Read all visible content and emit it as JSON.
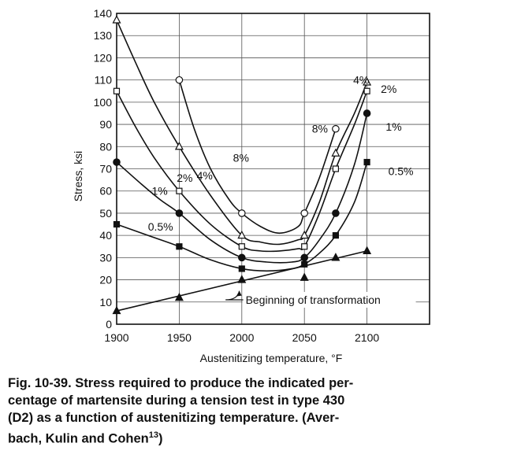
{
  "chart_data": {
    "type": "line",
    "title": "",
    "xlabel": "Austenitizing temperature, °F",
    "ylabel": "Stress, ksi",
    "xlim": [
      1900,
      2150
    ],
    "ylim": [
      0,
      140
    ],
    "x_ticks": [
      1900,
      1950,
      2000,
      2050,
      2100
    ],
    "x_tick_labels": [
      "1900",
      "1950",
      "2000",
      "2050",
      "2100"
    ],
    "y_ticks": [
      0,
      10,
      20,
      30,
      40,
      50,
      60,
      70,
      80,
      90,
      100,
      110,
      120,
      130,
      140
    ],
    "y_tick_labels": [
      "0",
      "10",
      "20",
      "30",
      "40",
      "50",
      "60",
      "70",
      "80",
      "90",
      "100",
      "110",
      "120",
      "130",
      "140"
    ],
    "series": [
      {
        "name": "8%",
        "marker": "open-circle",
        "points": [
          [
            1950,
            110
          ],
          [
            2000,
            50
          ],
          [
            2050,
            50
          ],
          [
            2075,
            88
          ]
        ],
        "curve": [
          [
            1950,
            110
          ],
          [
            1962,
            88
          ],
          [
            1975,
            70
          ],
          [
            1990,
            56
          ],
          [
            2000,
            50
          ],
          [
            2015,
            44
          ],
          [
            2030,
            41
          ],
          [
            2045,
            44
          ],
          [
            2050,
            50
          ],
          [
            2062,
            66
          ],
          [
            2075,
            88
          ]
        ]
      },
      {
        "name": "4%",
        "marker": "open-triangle",
        "points": [
          [
            1900,
            137
          ],
          [
            1950,
            80
          ],
          [
            2000,
            40
          ],
          [
            2050,
            40
          ],
          [
            2075,
            77
          ],
          [
            2100,
            109
          ]
        ],
        "curve": [
          [
            1900,
            137
          ],
          [
            1915,
            118
          ],
          [
            1930,
            100
          ],
          [
            1950,
            80
          ],
          [
            1975,
            58
          ],
          [
            2000,
            40
          ],
          [
            2015,
            37
          ],
          [
            2030,
            36
          ],
          [
            2045,
            38
          ],
          [
            2050,
            40
          ],
          [
            2062,
            55
          ],
          [
            2075,
            77
          ],
          [
            2090,
            95
          ],
          [
            2100,
            109
          ]
        ]
      },
      {
        "name": "2%",
        "marker": "open-square",
        "points": [
          [
            1900,
            105
          ],
          [
            1950,
            60
          ],
          [
            2000,
            35
          ],
          [
            2050,
            35
          ],
          [
            2075,
            70
          ],
          [
            2100,
            105
          ]
        ],
        "curve": [
          [
            1900,
            105
          ],
          [
            1915,
            89
          ],
          [
            1930,
            75
          ],
          [
            1950,
            60
          ],
          [
            1975,
            45
          ],
          [
            2000,
            35
          ],
          [
            2015,
            33
          ],
          [
            2030,
            33
          ],
          [
            2045,
            34
          ],
          [
            2050,
            35
          ],
          [
            2062,
            50
          ],
          [
            2075,
            70
          ],
          [
            2090,
            90
          ],
          [
            2100,
            105
          ]
        ]
      },
      {
        "name": "1%",
        "marker": "filled-circle",
        "points": [
          [
            1900,
            73
          ],
          [
            1950,
            50
          ],
          [
            2000,
            30
          ],
          [
            2050,
            30
          ],
          [
            2075,
            50
          ],
          [
            2100,
            95
          ]
        ],
        "curve": [
          [
            1900,
            73
          ],
          [
            1920,
            63
          ],
          [
            1935,
            56
          ],
          [
            1950,
            50
          ],
          [
            1975,
            38
          ],
          [
            2000,
            30
          ],
          [
            2020,
            28
          ],
          [
            2040,
            28
          ],
          [
            2050,
            30
          ],
          [
            2062,
            38
          ],
          [
            2075,
            50
          ],
          [
            2090,
            72
          ],
          [
            2100,
            95
          ]
        ]
      },
      {
        "name": "0.5%",
        "marker": "filled-square",
        "points": [
          [
            1900,
            45
          ],
          [
            1950,
            35
          ],
          [
            2000,
            25
          ],
          [
            2050,
            27
          ],
          [
            2075,
            40
          ],
          [
            2100,
            73
          ]
        ],
        "curve": [
          [
            1900,
            45
          ],
          [
            1925,
            40
          ],
          [
            1950,
            35
          ],
          [
            1975,
            29
          ],
          [
            2000,
            25
          ],
          [
            2020,
            24
          ],
          [
            2040,
            25
          ],
          [
            2050,
            27
          ],
          [
            2062,
            32
          ],
          [
            2075,
            40
          ],
          [
            2090,
            55
          ],
          [
            2100,
            73
          ]
        ]
      },
      {
        "name": "Beginning of transformation",
        "marker": "filled-triangle",
        "points": [
          [
            1900,
            6
          ],
          [
            1950,
            12
          ],
          [
            2000,
            20
          ],
          [
            2050,
            21
          ],
          [
            2075,
            30
          ],
          [
            2100,
            33
          ]
        ],
        "curve": [
          [
            1900,
            6
          ],
          [
            2100,
            33
          ]
        ]
      }
    ],
    "annotations": [
      {
        "text": "8%",
        "x": 1993,
        "y": 75
      },
      {
        "text": "4%",
        "x": 1964,
        "y": 67
      },
      {
        "text": "2%",
        "x": 1948,
        "y": 66
      },
      {
        "text": "1%",
        "x": 1928,
        "y": 60
      },
      {
        "text": "0.5%",
        "x": 1925,
        "y": 44
      },
      {
        "text": "8%",
        "x": 2056,
        "y": 88
      },
      {
        "text": "4%",
        "x": 2089,
        "y": 110
      },
      {
        "text": "2%",
        "x": 2111,
        "y": 106
      },
      {
        "text": "1%",
        "x": 2115,
        "y": 89
      },
      {
        "text": "0.5%",
        "x": 2117,
        "y": 69
      },
      {
        "text": "Beginning of transformation",
        "x": 2003,
        "y": 11,
        "arrow_to": [
          1998,
          15
        ],
        "arrow_from": [
          1987,
          11
        ]
      }
    ]
  },
  "caption": {
    "line1": "Fig. 10-39. Stress required to produce the indicated per-",
    "line2": "centage of martensite during a tension test in type 430",
    "line3": "(D2) as a function of austenitizing temperature. (Aver-",
    "line4": "bach, Kulin and Cohen",
    "line4_ref": "13",
    "line4_end": ")"
  }
}
